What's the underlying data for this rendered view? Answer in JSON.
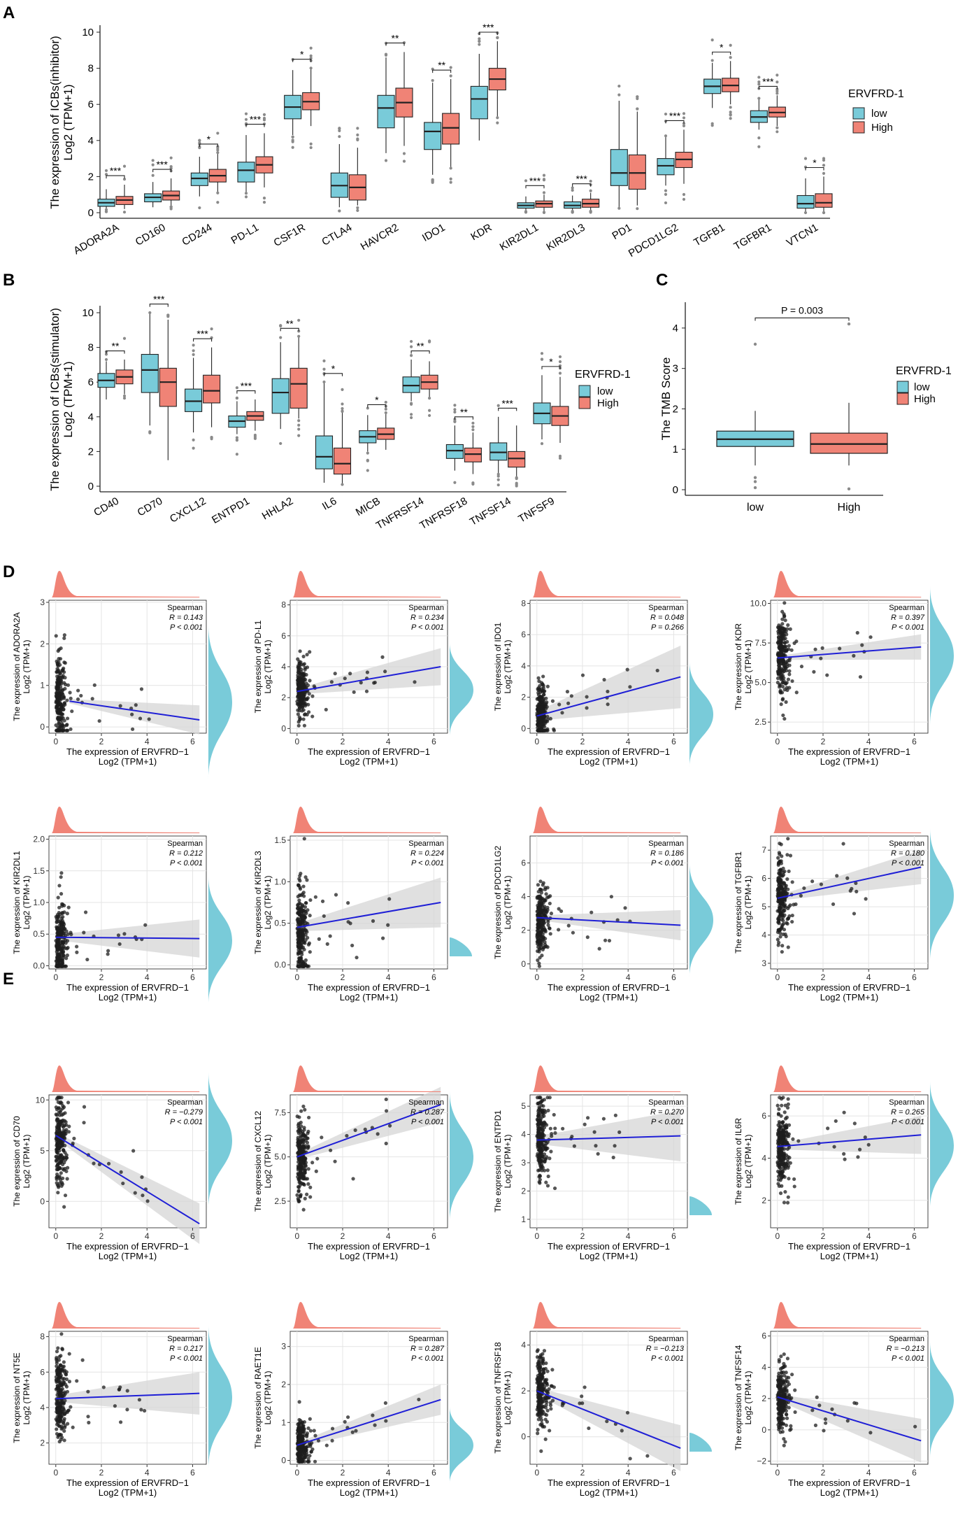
{
  "colors": {
    "low": "#79cbd9",
    "high": "#f08376",
    "line": "#1f1fd6",
    "band": "#d6d6d6",
    "point": "#1e1e1e",
    "outlier": "#8a8a8a",
    "grid": "#e4e4e4"
  },
  "panel_labels": {
    "A": "A",
    "B": "B",
    "C": "C",
    "D": "D",
    "E": "E"
  },
  "legend": {
    "title": "ERVFRD-1",
    "low": "low",
    "high": "High"
  },
  "chart_data": [
    {
      "id": "A",
      "type": "boxplot",
      "ylabel": "The expression of ICBs(inhibitor)",
      "ylabel2": "Log2 (TPM+1)",
      "ylim": [
        0,
        10
      ],
      "yticks": [
        0,
        2,
        4,
        6,
        8,
        10
      ],
      "categories": [
        "ADORA2A",
        "CD160",
        "CD244",
        "PD-L1",
        "CSF1R",
        "CTLA4",
        "HAVCR2",
        "IDO1",
        "KDR",
        "KIR2DL1",
        "KIR2DL3",
        "PD1",
        "PDCD1LG2",
        "TGFB1",
        "TGFBR1",
        "VTCN1"
      ],
      "significance": [
        "***",
        "***",
        "*",
        "***",
        "*",
        "",
        "**",
        "**",
        "***",
        "***",
        "***",
        "",
        "***",
        "*",
        "***",
        "*"
      ],
      "low": [
        [
          0.2,
          0.35,
          0.55,
          0.75,
          1.3
        ],
        [
          0.3,
          0.6,
          0.85,
          1.05,
          1.7
        ],
        [
          0.9,
          1.5,
          1.9,
          2.2,
          3.1
        ],
        [
          1.1,
          1.7,
          2.35,
          2.8,
          4.3
        ],
        [
          4.3,
          5.2,
          5.85,
          6.5,
          7.9
        ],
        [
          0.3,
          0.85,
          1.5,
          2.2,
          3.8
        ],
        [
          3.3,
          4.7,
          5.8,
          6.5,
          8.6
        ],
        [
          2.1,
          3.5,
          4.5,
          5.0,
          7.2
        ],
        [
          4.0,
          5.2,
          6.3,
          7.0,
          8.8
        ],
        [
          0.1,
          0.25,
          0.4,
          0.55,
          0.9
        ],
        [
          0.1,
          0.25,
          0.4,
          0.6,
          0.95
        ],
        [
          0.3,
          1.5,
          2.2,
          3.5,
          6.2
        ],
        [
          1.5,
          2.1,
          2.6,
          3.0,
          4.2
        ],
        [
          5.8,
          6.6,
          7.0,
          7.4,
          8.3
        ],
        [
          4.6,
          5.0,
          5.3,
          5.65,
          6.3
        ],
        [
          0.0,
          0.25,
          0.5,
          0.95,
          1.9
        ]
      ],
      "high": [
        [
          0.2,
          0.45,
          0.7,
          0.9,
          1.55
        ],
        [
          0.4,
          0.7,
          0.95,
          1.2,
          1.9
        ],
        [
          1.1,
          1.7,
          2.05,
          2.4,
          3.3
        ],
        [
          1.4,
          2.2,
          2.65,
          3.1,
          4.4
        ],
        [
          4.8,
          5.7,
          6.15,
          6.65,
          8.0
        ],
        [
          0.4,
          0.7,
          1.4,
          2.1,
          3.6
        ],
        [
          3.7,
          5.3,
          6.1,
          6.9,
          8.9
        ],
        [
          2.5,
          3.8,
          4.7,
          5.5,
          7.4
        ],
        [
          5.3,
          6.8,
          7.4,
          8.0,
          9.5
        ],
        [
          0.1,
          0.3,
          0.5,
          0.65,
          1.0
        ],
        [
          0.1,
          0.3,
          0.5,
          0.75,
          1.1
        ],
        [
          0.4,
          1.3,
          2.2,
          3.2,
          5.6
        ],
        [
          1.6,
          2.5,
          2.95,
          3.35,
          4.6
        ],
        [
          6.0,
          6.7,
          7.05,
          7.45,
          8.4
        ],
        [
          4.8,
          5.3,
          5.55,
          5.85,
          6.5
        ],
        [
          0.0,
          0.3,
          0.55,
          1.05,
          2.0
        ]
      ]
    },
    {
      "id": "B",
      "type": "boxplot",
      "ylabel": "The expression of ICBs(stimulator)",
      "ylabel2": "Log2 (TPM+1)",
      "ylim": [
        0,
        10
      ],
      "yticks": [
        0,
        2,
        4,
        6,
        8,
        10
      ],
      "categories": [
        "CD40",
        "CD70",
        "CXCL12",
        "ENTPD1",
        "HHLA2",
        "IL6",
        "MICB",
        "TNFRSF14",
        "TNFRSF18",
        "TNFSF14",
        "TNFSF9"
      ],
      "significance": [
        "**",
        "***",
        "***",
        "***",
        "**",
        "*",
        "*",
        "**",
        "**",
        "***",
        "*"
      ],
      "low": [
        [
          5.0,
          5.7,
          6.1,
          6.5,
          7.2
        ],
        [
          3.5,
          5.4,
          6.7,
          7.6,
          10.0
        ],
        [
          3.1,
          4.3,
          4.9,
          5.6,
          7.4
        ],
        [
          3.0,
          3.4,
          3.75,
          4.05,
          4.9
        ],
        [
          3.3,
          4.2,
          5.4,
          6.2,
          8.3
        ],
        [
          0.2,
          1.0,
          1.7,
          2.9,
          6.0
        ],
        [
          2.0,
          2.5,
          2.85,
          3.2,
          4.1
        ],
        [
          4.9,
          5.4,
          5.8,
          6.3,
          7.3
        ],
        [
          0.9,
          1.6,
          2.05,
          2.4,
          3.5
        ],
        [
          0.7,
          1.5,
          1.95,
          2.5,
          4.0
        ],
        [
          2.7,
          3.6,
          4.2,
          4.8,
          6.4
        ]
      ],
      "high": [
        [
          5.3,
          5.9,
          6.3,
          6.7,
          7.3
        ],
        [
          1.5,
          4.6,
          6.0,
          6.8,
          9.6
        ],
        [
          3.4,
          4.8,
          5.5,
          6.4,
          8.0
        ],
        [
          3.2,
          3.8,
          4.05,
          4.3,
          5.0
        ],
        [
          3.9,
          4.5,
          5.9,
          6.8,
          8.6
        ],
        [
          0.1,
          0.7,
          1.3,
          2.2,
          4.3
        ],
        [
          2.1,
          2.7,
          3.0,
          3.35,
          4.2
        ],
        [
          5.1,
          5.6,
          6.0,
          6.4,
          7.2
        ],
        [
          0.7,
          1.4,
          1.85,
          2.2,
          3.1
        ],
        [
          0.5,
          1.1,
          1.6,
          2.0,
          3.5
        ],
        [
          2.5,
          3.5,
          4.05,
          4.6,
          6.3
        ]
      ]
    },
    {
      "id": "C",
      "type": "boxplot",
      "ylabel": "The TMB Score",
      "ylim": [
        0,
        4.5
      ],
      "yticks": [
        0,
        1,
        2,
        3,
        4
      ],
      "categories": [
        "low",
        "High"
      ],
      "annotation": "P = 0.003",
      "boxes": [
        [
          0.6,
          1.07,
          1.25,
          1.45,
          1.95
        ],
        [
          0.6,
          0.9,
          1.13,
          1.4,
          2.15
        ]
      ]
    }
  ],
  "scatter_common": {
    "xlabel": "The expression of ERVFRD−1",
    "xlabel2": "Log2 (TPM+1)",
    "xticks": [
      0,
      2,
      4,
      6
    ],
    "method": "Spearman"
  },
  "scatter_panels": [
    {
      "gene": "ADORA2A",
      "r": "R = 0.143",
      "p": "P < 0.001",
      "ylim": [
        -0.15,
        3.05
      ],
      "yticks": [
        0,
        1,
        2,
        3
      ],
      "ytick_labels": [
        "0",
        "1",
        "2",
        "3"
      ],
      "x0": 0.6,
      "x1": 6.3,
      "y0": 0.62,
      "y1": 0.17,
      "ymu": 0.6,
      "ysd": 0.55,
      "band": 0.35,
      "rightdens": true
    },
    {
      "gene": "PD-L1",
      "r": "R = 0.234",
      "p": "P < 0.001",
      "ylim": [
        -0.3,
        8.3
      ],
      "yticks": [
        0,
        2,
        4,
        6,
        8
      ],
      "ytick_labels": [
        "0",
        "2",
        "4",
        "6",
        "8"
      ],
      "x0": 0.0,
      "x1": 6.3,
      "y0": 2.4,
      "y1": 4.0,
      "ymu": 2.5,
      "ysd": 0.9,
      "band": 1.2,
      "rightdens": true
    },
    {
      "gene": "IDO1",
      "r": "R = 0.048",
      "p": "P = 0.266",
      "ylim": [
        -0.3,
        8.2
      ],
      "yticks": [
        0,
        2,
        4,
        6,
        8
      ],
      "ytick_labels": [
        "0",
        "2",
        "4",
        "6",
        "8"
      ],
      "x0": 0.0,
      "x1": 6.3,
      "y0": 0.8,
      "y1": 3.3,
      "ymu": 0.9,
      "ysd": 1.0,
      "band": 2.0,
      "rightdens": true
    },
    {
      "gene": "KDR",
      "r": "R = 0.397",
      "p": "P < 0.001",
      "ylim": [
        1.8,
        10.2
      ],
      "yticks": [
        2.5,
        5.0,
        7.5,
        10.0
      ],
      "ytick_labels": [
        "2.5",
        "5.0",
        "7.5",
        "10.0"
      ],
      "x0": 0.0,
      "x1": 6.3,
      "y0": 6.55,
      "y1": 7.25,
      "ymu": 6.7,
      "ysd": 1.3,
      "band": 0.8,
      "rightdens": true
    },
    {
      "gene": "KIR2DL1",
      "r": "R = 0.212",
      "p": "P < 0.001",
      "ylim": [
        -0.05,
        2.05
      ],
      "yticks": [
        0,
        0.5,
        1,
        1.5,
        2
      ],
      "ytick_labels": [
        "0.0",
        "0.5",
        "1.0",
        "1.5",
        "2.0"
      ],
      "x0": 0.0,
      "x1": 6.3,
      "y0": 0.45,
      "y1": 0.43,
      "ymu": 0.4,
      "ysd": 0.3,
      "band": 0.3,
      "rightdens": true
    },
    {
      "gene": "KIR2DL3",
      "r": "R = 0.224",
      "p": "P < 0.001",
      "ylim": [
        -0.05,
        1.55
      ],
      "yticks": [
        0,
        0.5,
        1,
        1.5
      ],
      "ytick_labels": [
        "0.0",
        "0.5",
        "1.0",
        "1.5"
      ],
      "x0": 0.0,
      "x1": 6.3,
      "y0": 0.45,
      "y1": 0.75,
      "ymu": 0.4,
      "ysd": 0.3,
      "band": 0.3,
      "rightdens": false
    },
    {
      "gene": "PDCD1LG2",
      "r": "R = 0.186",
      "p": "P < 0.001",
      "ylim": [
        -0.3,
        7.6
      ],
      "yticks": [
        0,
        2,
        4,
        6
      ],
      "ytick_labels": [
        "0",
        "2",
        "4",
        "6"
      ],
      "x0": 0.0,
      "x1": 6.3,
      "y0": 2.75,
      "y1": 2.3,
      "ymu": 2.6,
      "ysd": 1.0,
      "band": 0.9,
      "rightdens": true
    },
    {
      "gene": "TGFBR1",
      "r": "R = 0.180",
      "p": "P < 0.001",
      "ylim": [
        2.8,
        7.5
      ],
      "yticks": [
        3,
        4,
        5,
        6,
        7
      ],
      "ytick_labels": [
        "3",
        "4",
        "5",
        "6",
        "7"
      ],
      "x0": 0.0,
      "x1": 6.3,
      "y0": 5.3,
      "y1": 6.4,
      "ymu": 5.4,
      "ysd": 0.7,
      "band": 0.6,
      "rightdens": true
    },
    {
      "gene": "CD70",
      "r": "R = −0.279",
      "p": "P < 0.001",
      "ylim": [
        -2.6,
        10.5
      ],
      "yticks": [
        0,
        5,
        10
      ],
      "ytick_labels": [
        "0",
        "5",
        "10"
      ],
      "x0": 0.0,
      "x1": 6.3,
      "y0": 6.5,
      "y1": -2.2,
      "ymu": 6.0,
      "ysd": 2.0,
      "band": 2.0,
      "rightdens": true
    },
    {
      "gene": "CXCL12",
      "r": "R = 0.287",
      "p": "P < 0.001",
      "ylim": [
        1.0,
        8.5
      ],
      "yticks": [
        2.5,
        5.0,
        7.5
      ],
      "ytick_labels": [
        "2.5",
        "5.0",
        "7.5"
      ],
      "x0": 0.0,
      "x1": 6.3,
      "y0": 5.0,
      "y1": 7.95,
      "ymu": 5.0,
      "ysd": 1.1,
      "band": 1.0,
      "rightdens": true
    },
    {
      "gene": "ENTPD1",
      "r": "R = 0.270",
      "p": "P < 0.001",
      "ylim": [
        0.7,
        5.4
      ],
      "yticks": [
        1,
        2,
        3,
        4,
        5
      ],
      "ytick_labels": [
        "1",
        "2",
        "3",
        "4",
        "5"
      ],
      "x0": 0.0,
      "x1": 6.3,
      "y0": 3.8,
      "y1": 3.95,
      "ymu": 3.8,
      "ysd": 0.7,
      "band": 0.9,
      "rightdens": false
    },
    {
      "gene": "IL6R",
      "r": "R = 0.265",
      "p": "P < 0.001",
      "ylim": [
        0.7,
        7.0
      ],
      "yticks": [
        2,
        4,
        6
      ],
      "ytick_labels": [
        "2",
        "4",
        "6"
      ],
      "x0": 0.0,
      "x1": 6.3,
      "y0": 4.55,
      "y1": 5.1,
      "ymu": 4.6,
      "ysd": 0.9,
      "band": 0.9,
      "rightdens": true
    },
    {
      "gene": "NT5E",
      "r": "R = 0.217",
      "p": "P < 0.001",
      "ylim": [
        0.8,
        8.3
      ],
      "yticks": [
        2,
        4,
        6,
        8
      ],
      "ytick_labels": [
        "2",
        "4",
        "6",
        "8"
      ],
      "x0": 0.0,
      "x1": 6.3,
      "y0": 4.5,
      "y1": 4.8,
      "ymu": 4.6,
      "ysd": 1.2,
      "band": 1.2,
      "rightdens": true
    },
    {
      "gene": "RAET1E",
      "r": "R = 0.287",
      "p": "P < 0.001",
      "ylim": [
        -0.1,
        3.4
      ],
      "yticks": [
        0,
        1,
        2,
        3
      ],
      "ytick_labels": [
        "0",
        "1",
        "2",
        "3"
      ],
      "x0": 0.0,
      "x1": 6.3,
      "y0": 0.4,
      "y1": 1.6,
      "ymu": 0.4,
      "ysd": 0.3,
      "band": 0.4,
      "rightdens": true
    },
    {
      "gene": "TNFRSF18",
      "r": "R = −0.213",
      "p": "P < 0.001",
      "ylim": [
        -1.2,
        4.6
      ],
      "yticks": [
        0,
        2,
        4
      ],
      "ytick_labels": [
        "0",
        "2",
        "4"
      ],
      "x0": 0.0,
      "x1": 6.3,
      "y0": 2.0,
      "y1": -0.5,
      "ymu": 1.9,
      "ysd": 0.8,
      "band": 1.0,
      "rightdens": false
    },
    {
      "gene": "TNFSF14",
      "r": "R = −0.213",
      "p": "P < 0.001",
      "ylim": [
        -2.2,
        6.3
      ],
      "yticks": [
        -2,
        0,
        2,
        4,
        6
      ],
      "ytick_labels": [
        "−2",
        "0",
        "2",
        "4",
        "6"
      ],
      "x0": 0.0,
      "x1": 6.3,
      "y0": 2.1,
      "y1": -0.7,
      "ymu": 1.9,
      "ysd": 1.1,
      "band": 1.4,
      "rightdens": true
    }
  ]
}
